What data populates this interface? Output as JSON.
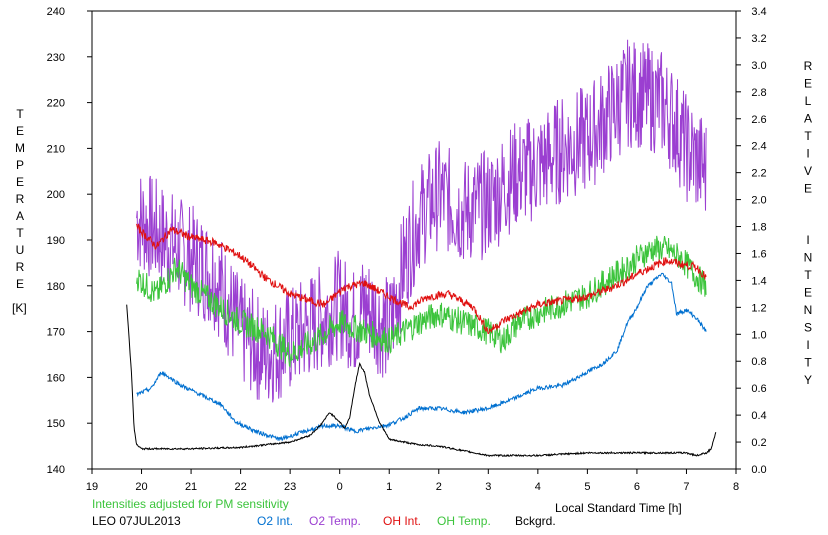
{
  "chart_data": {
    "type": "line",
    "title": "",
    "xlabel": "Local Standard Time [h]",
    "ylabel_left": "TEMPERATURE",
    "ylabel_left_unit": "[K]",
    "ylabel_right": "RELATIVE INTENSITY",
    "xlim": [
      19,
      32
    ],
    "ylim_left": [
      140,
      240
    ],
    "ylim_right": [
      0,
      3.4
    ],
    "x_ticks": [
      19,
      20,
      21,
      22,
      23,
      24,
      25,
      26,
      27,
      28,
      29,
      30,
      31,
      32
    ],
    "x_tick_labels": [
      "19",
      "20",
      "21",
      "22",
      "23",
      "0",
      "1",
      "2",
      "3",
      "4",
      "5",
      "6",
      "7",
      "8"
    ],
    "y_left_ticks": [
      140,
      150,
      160,
      170,
      180,
      190,
      200,
      210,
      220,
      230,
      240
    ],
    "y_right_ticks": [
      "0.0",
      "0.2",
      "0.4",
      "0.6",
      "0.8",
      "1.0",
      "1.2",
      "1.4",
      "1.6",
      "1.8",
      "2.0",
      "2.2",
      "2.4",
      "2.6",
      "2.8",
      "3.0",
      "3.2",
      "3.4"
    ],
    "note": "Intensities adjusted for PM sensitivity",
    "station_date": "LEO 07JUL2013",
    "legend_placement": "bottom",
    "grid": false,
    "series": [
      {
        "name": "O2 Int.",
        "axis": "right",
        "color": "#0070d0",
        "noise": 0.015,
        "x": [
          19.9,
          20.2,
          20.4,
          20.8,
          21.2,
          21.6,
          21.9,
          22.3,
          22.8,
          23.3,
          23.7,
          24.0,
          24.3,
          25.0,
          25.3,
          25.6,
          26.0,
          26.5,
          27.0,
          27.5,
          28.0,
          28.5,
          29.0,
          29.3,
          29.6,
          29.8,
          30.0,
          30.2,
          30.5,
          30.7,
          30.8,
          31.0,
          31.2,
          31.4
        ],
        "y": [
          0.55,
          0.6,
          0.72,
          0.62,
          0.55,
          0.48,
          0.35,
          0.28,
          0.22,
          0.28,
          0.32,
          0.32,
          0.28,
          0.33,
          0.38,
          0.45,
          0.45,
          0.42,
          0.45,
          0.52,
          0.6,
          0.62,
          0.72,
          0.78,
          0.88,
          1.08,
          1.2,
          1.35,
          1.45,
          1.38,
          1.15,
          1.18,
          1.12,
          1.02
        ]
      },
      {
        "name": "O2 Temp.",
        "axis": "left",
        "color": "#9b3fd1",
        "noise": 12,
        "x": [
          19.9,
          20.5,
          21.0,
          21.5,
          22.0,
          22.5,
          23.0,
          23.5,
          24.0,
          24.3,
          24.5,
          25.0,
          25.3,
          25.6,
          26.0,
          26.5,
          27.0,
          27.5,
          28.0,
          28.5,
          29.0,
          29.5,
          29.8,
          30.0,
          30.5,
          30.8,
          31.0,
          31.4
        ],
        "y": [
          195,
          190,
          186,
          182,
          170,
          165,
          168,
          172,
          176,
          172,
          176,
          170,
          185,
          195,
          200,
          196,
          198,
          204,
          206,
          210,
          212,
          218,
          222,
          222,
          220,
          215,
          210,
          205
        ]
      },
      {
        "name": "OH Int.",
        "axis": "right",
        "color": "#e01010",
        "noise": 0.03,
        "x": [
          19.9,
          20.3,
          20.6,
          21.0,
          21.5,
          22.0,
          22.5,
          23.0,
          23.4,
          23.7,
          24.1,
          24.5,
          25.0,
          25.4,
          25.8,
          26.2,
          26.7,
          27.0,
          27.3,
          27.6,
          28.0,
          28.5,
          29.0,
          29.5,
          29.8,
          30.0,
          30.3,
          30.6,
          30.9,
          31.2,
          31.4
        ],
        "y": [
          1.8,
          1.65,
          1.78,
          1.72,
          1.68,
          1.58,
          1.42,
          1.3,
          1.25,
          1.22,
          1.35,
          1.38,
          1.28,
          1.2,
          1.28,
          1.3,
          1.2,
          1.02,
          1.1,
          1.15,
          1.22,
          1.25,
          1.28,
          1.35,
          1.4,
          1.45,
          1.5,
          1.55,
          1.52,
          1.5,
          1.42
        ]
      },
      {
        "name": "OH Temp.",
        "axis": "left",
        "color": "#3cc43c",
        "noise": 3,
        "x": [
          19.9,
          20.3,
          20.7,
          21.0,
          21.5,
          22.0,
          22.5,
          23.0,
          23.5,
          24.0,
          24.5,
          25.0,
          25.3,
          25.6,
          26.0,
          26.5,
          27.0,
          27.3,
          27.6,
          28.0,
          28.5,
          29.0,
          29.5,
          29.8,
          30.0,
          30.3,
          30.6,
          30.9,
          31.2,
          31.4
        ],
        "y": [
          182,
          178,
          184,
          180,
          176,
          172,
          170,
          165,
          168,
          172,
          170,
          168,
          170,
          172,
          174,
          172,
          170,
          168,
          172,
          174,
          176,
          178,
          182,
          184,
          186,
          188,
          188,
          186,
          182,
          180
        ]
      },
      {
        "name": "Bckgrd.",
        "axis": "right",
        "color": "#000000",
        "noise": 0.006,
        "x": [
          19.7,
          19.8,
          19.85,
          19.9,
          20.0,
          21.0,
          22.0,
          22.5,
          23.0,
          23.4,
          23.6,
          23.8,
          24.0,
          24.1,
          24.2,
          24.3,
          24.4,
          24.5,
          24.6,
          24.8,
          25.0,
          25.3,
          25.6,
          26.0,
          27.0,
          28.0,
          29.0,
          30.0,
          31.0,
          31.2,
          31.4,
          31.5,
          31.6
        ],
        "y": [
          1.22,
          0.7,
          0.3,
          0.18,
          0.15,
          0.15,
          0.16,
          0.18,
          0.2,
          0.25,
          0.32,
          0.42,
          0.35,
          0.3,
          0.38,
          0.6,
          0.78,
          0.72,
          0.55,
          0.35,
          0.22,
          0.2,
          0.18,
          0.17,
          0.1,
          0.1,
          0.12,
          0.12,
          0.12,
          0.1,
          0.12,
          0.15,
          0.28
        ]
      }
    ]
  }
}
